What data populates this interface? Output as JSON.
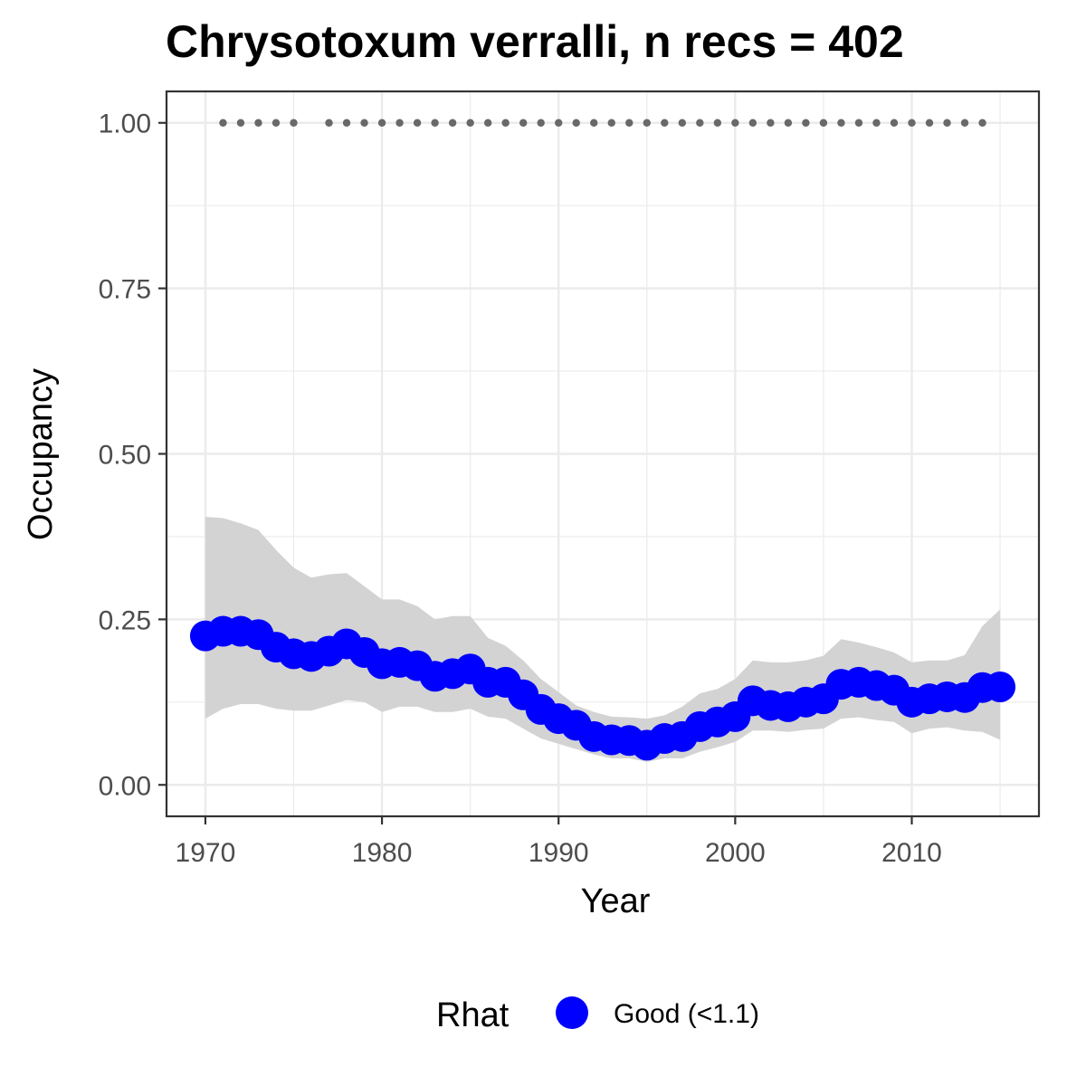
{
  "chart_data": {
    "type": "line",
    "title": "Chrysotoxum verralli, n recs = 402",
    "xlabel": "Year",
    "ylabel": "Occupancy",
    "xlim": [
      1967.8,
      2017.2
    ],
    "ylim": [
      -0.0475,
      1.0475
    ],
    "x_ticks": [
      1970,
      1980,
      1990,
      2000,
      2010
    ],
    "x_tick_labels": [
      "1970",
      "1980",
      "1990",
      "2000",
      "2010"
    ],
    "y_ticks": [
      0,
      0.25,
      0.5,
      0.75,
      1.0
    ],
    "y_tick_labels": [
      "0.00",
      "0.25",
      "0.50",
      "0.75",
      "1.00"
    ],
    "grid": true,
    "legend": {
      "title": "Rhat",
      "position": "bottom",
      "entries": [
        {
          "label": "Good (<1.1)",
          "color": "#0000ff"
        }
      ]
    },
    "series": [
      {
        "name": "Good (<1.1)",
        "color": "#0000ff",
        "x": [
          1970,
          1971,
          1972,
          1973,
          1974,
          1975,
          1976,
          1977,
          1978,
          1979,
          1980,
          1981,
          1982,
          1983,
          1984,
          1985,
          1986,
          1987,
          1988,
          1989,
          1990,
          1991,
          1992,
          1993,
          1994,
          1995,
          1996,
          1997,
          1998,
          1999,
          2000,
          2001,
          2002,
          2003,
          2004,
          2005,
          2006,
          2007,
          2008,
          2009,
          2010,
          2011,
          2012,
          2013,
          2014,
          2015
        ],
        "y": [
          0.225,
          0.232,
          0.232,
          0.227,
          0.208,
          0.198,
          0.194,
          0.202,
          0.213,
          0.2,
          0.183,
          0.185,
          0.18,
          0.164,
          0.168,
          0.175,
          0.155,
          0.155,
          0.136,
          0.114,
          0.1,
          0.09,
          0.073,
          0.068,
          0.067,
          0.06,
          0.07,
          0.073,
          0.088,
          0.095,
          0.103,
          0.127,
          0.12,
          0.118,
          0.125,
          0.13,
          0.152,
          0.155,
          0.15,
          0.143,
          0.125,
          0.13,
          0.133,
          0.132,
          0.147,
          0.148
        ]
      }
    ],
    "ribbon": {
      "color": "#d3d3d3",
      "upper": [
        0.405,
        0.403,
        0.395,
        0.385,
        0.355,
        0.328,
        0.313,
        0.318,
        0.32,
        0.3,
        0.28,
        0.28,
        0.27,
        0.25,
        0.255,
        0.255,
        0.222,
        0.21,
        0.188,
        0.16,
        0.14,
        0.12,
        0.11,
        0.103,
        0.102,
        0.1,
        0.105,
        0.118,
        0.138,
        0.145,
        0.16,
        0.188,
        0.185,
        0.185,
        0.188,
        0.195,
        0.22,
        0.215,
        0.208,
        0.2,
        0.185,
        0.188,
        0.188,
        0.196,
        0.24,
        0.265
      ],
      "lower": [
        0.1,
        0.115,
        0.122,
        0.122,
        0.115,
        0.112,
        0.112,
        0.12,
        0.128,
        0.125,
        0.11,
        0.118,
        0.118,
        0.11,
        0.11,
        0.115,
        0.103,
        0.1,
        0.085,
        0.07,
        0.062,
        0.054,
        0.046,
        0.04,
        0.04,
        0.035,
        0.04,
        0.04,
        0.05,
        0.057,
        0.065,
        0.082,
        0.082,
        0.08,
        0.083,
        0.085,
        0.1,
        0.102,
        0.098,
        0.095,
        0.078,
        0.085,
        0.087,
        0.082,
        0.08,
        0.068
      ]
    },
    "detections": {
      "color": "#696969",
      "y": 1.0,
      "x": [
        1971,
        1972,
        1973,
        1974,
        1975,
        1977,
        1978,
        1979,
        1980,
        1981,
        1982,
        1983,
        1984,
        1985,
        1986,
        1987,
        1988,
        1989,
        1990,
        1991,
        1992,
        1993,
        1994,
        1995,
        1996,
        1997,
        1998,
        1999,
        2000,
        2001,
        2002,
        2003,
        2004,
        2005,
        2006,
        2007,
        2008,
        2009,
        2010,
        2011,
        2012,
        2013,
        2014
      ]
    }
  }
}
